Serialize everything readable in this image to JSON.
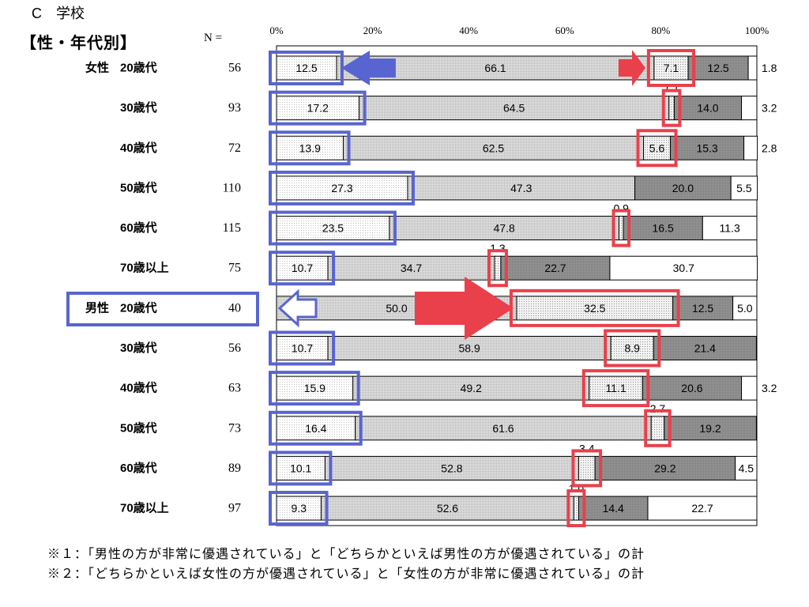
{
  "footnotes": [
    "※１：「男性の方が非常に優遇されている」と「どちらかといえば男性の方が優遇されている」の計",
    "※２：「どちらかといえば女性の方が優遇されている」と「女性の方が非常に優遇されている」の計"
  ],
  "chart_data": {
    "type": "bar",
    "orientation": "horizontal",
    "stacked": true,
    "title": "C　学校",
    "subtitle": "【性・年代別】",
    "n_header": "N =",
    "xlim": [
      0,
      100
    ],
    "x_ticks": [
      "0%",
      "20%",
      "40%",
      "60%",
      "80%",
      "100%"
    ],
    "grid": false,
    "groups": [
      {
        "label": "女性",
        "first_row": 0
      },
      {
        "label": "男性",
        "first_row": 6
      }
    ],
    "categories": [
      "20歳代",
      "30歳代",
      "40歳代",
      "50歳代",
      "60歳代",
      "70歳以上",
      "20歳代",
      "30歳代",
      "40歳代",
      "50歳代",
      "60歳代",
      "70歳以上"
    ],
    "n": [
      56,
      93,
      72,
      110,
      115,
      75,
      40,
      56,
      63,
      73,
      89,
      97
    ],
    "series": [
      {
        "values": [
          12.5,
          17.2,
          13.9,
          27.3,
          23.5,
          10.7,
          0.0,
          10.7,
          15.9,
          16.4,
          10.1,
          9.3
        ]
      },
      {
        "values": [
          66.1,
          64.5,
          62.5,
          47.3,
          47.8,
          34.7,
          50.0,
          58.9,
          49.2,
          61.6,
          52.8,
          52.6
        ]
      },
      {
        "values": [
          7.1,
          1.1,
          5.6,
          0.0,
          0.9,
          1.3,
          32.5,
          8.9,
          11.1,
          2.7,
          3.4,
          1.0
        ]
      },
      {
        "values": [
          12.5,
          14.0,
          15.3,
          20.0,
          16.5,
          22.7,
          12.5,
          21.4,
          20.6,
          19.2,
          29.2,
          14.4
        ]
      },
      {
        "values": [
          1.8,
          3.2,
          2.8,
          5.5,
          11.3,
          30.7,
          5.0,
          0.0,
          3.2,
          0.0,
          4.5,
          22.7
        ]
      }
    ],
    "colors": {
      "series": [
        "#ffffff",
        "#e0e0e0",
        "#f2f2f2",
        "#939393",
        "#ffffff"
      ],
      "blue_marker": "#5865d0",
      "red_marker": "#e9404b"
    }
  }
}
